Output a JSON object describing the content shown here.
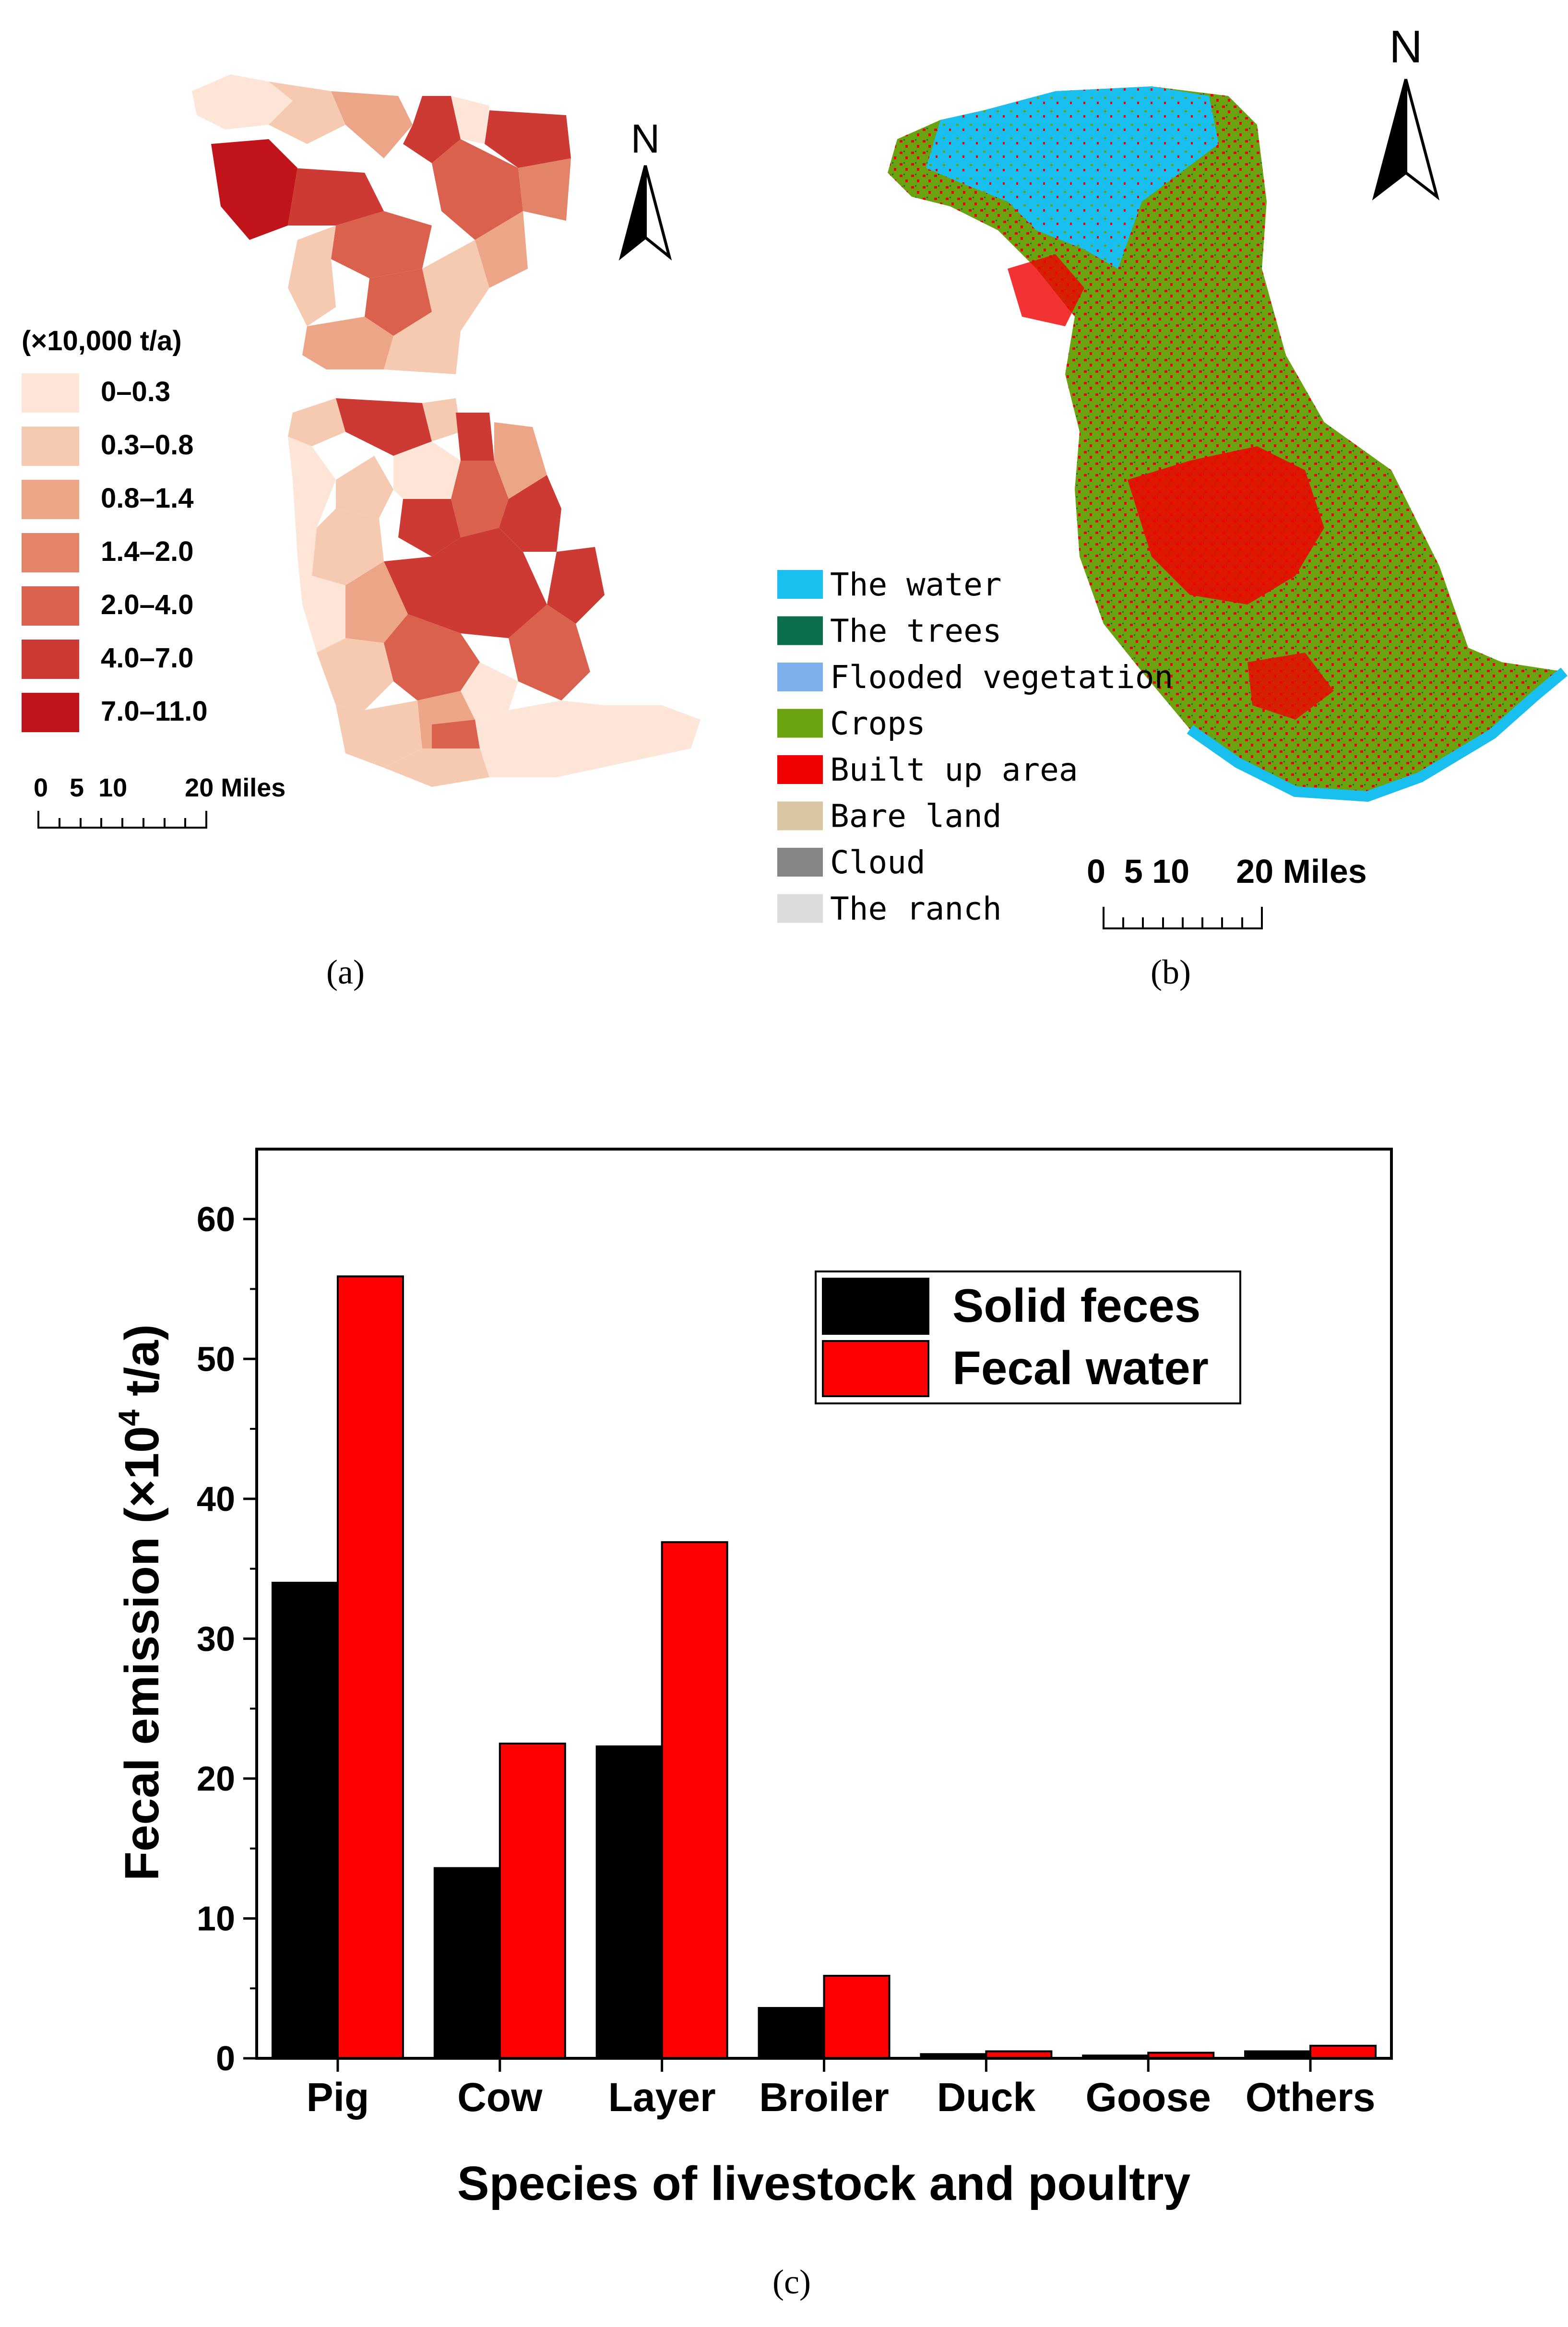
{
  "panel_a": {
    "caption": "(a)",
    "legend_title": "(×10,000 t/a)",
    "classes": [
      {
        "label": "0–0.3",
        "color": "#fde6d8"
      },
      {
        "label": "0.3–0.8",
        "color": "#f6c9b1"
      },
      {
        "label": "0.8–1.4",
        "color": "#eda588"
      },
      {
        "label": "1.4–2.0",
        "color": "#e38469"
      },
      {
        "label": "2.0–4.0",
        "color": "#d9614e"
      },
      {
        "label": "4.0–7.0",
        "color": "#cd3a33"
      },
      {
        "label": "7.0–11.0",
        "color": "#c0141a"
      }
    ],
    "scale_label": "0   5  10        20 Miles",
    "north": "N"
  },
  "panel_b": {
    "caption": "(b)",
    "legend": [
      {
        "label": "The water",
        "color": "#19c0ef"
      },
      {
        "label": "The trees",
        "color": "#0b6e4f"
      },
      {
        "label": "Flooded vegetation",
        "color": "#7fb0ee"
      },
      {
        "label": "Crops",
        "color": "#6aa30f"
      },
      {
        "label": "Built up area",
        "color": "#f00000"
      },
      {
        "label": "Bare land",
        "color": "#d9c6a3"
      },
      {
        "label": "Cloud",
        "color": "#858585"
      },
      {
        "label": "The ranch",
        "color": "#dcdcdc"
      }
    ],
    "scale_label": "0  5 10     20 Miles",
    "north": "N"
  },
  "panel_c": {
    "caption": "(c)"
  },
  "chart_data": {
    "type": "bar",
    "categories": [
      "Pig",
      "Cow",
      "Layer",
      "Broiler",
      "Duck",
      "Goose",
      "Others"
    ],
    "series": [
      {
        "name": "Solid feces",
        "color": "#000000",
        "values": [
          34.0,
          13.6,
          22.3,
          3.6,
          0.3,
          0.2,
          0.5
        ]
      },
      {
        "name": "Fecal water",
        "color": "#ff0000",
        "values": [
          55.9,
          22.5,
          36.9,
          5.9,
          0.5,
          0.4,
          0.9
        ]
      }
    ],
    "xlabel": "Species of livestock and poultry",
    "ylabel_main": "Fecal emission (×10",
    "ylabel_sup": "4",
    "ylabel_end": " t/a)",
    "ylim": [
      0,
      65
    ],
    "yticks": [
      0,
      10,
      20,
      30,
      40,
      50,
      60
    ],
    "legend_position": "top-right"
  }
}
